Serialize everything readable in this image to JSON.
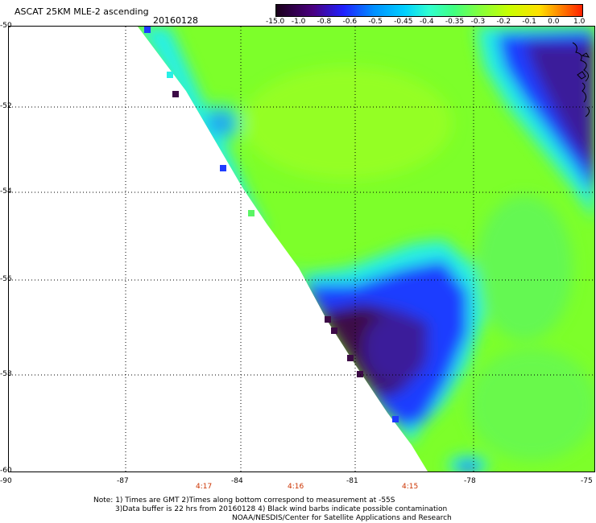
{
  "title": "ASCAT 25KM MLE-2 ascending",
  "date": "20160128",
  "colorbar": {
    "labels": [
      "-15.0",
      "-1.0",
      "-0.8",
      "-0.6",
      "-0.5",
      "-0.45",
      "-0.4",
      "-0.35",
      "-0.3",
      "-0.2",
      "-0.1",
      "0.0",
      "1.0"
    ],
    "colors": [
      "#1a001a",
      "#3a0060",
      "#5a00b0",
      "#2020ff",
      "#0080ff",
      "#00c8ff",
      "#40ffe0",
      "#40ff80",
      "#80ff40",
      "#c0ff00",
      "#ffff00",
      "#ff9000",
      "#ff2000"
    ]
  },
  "axes": {
    "lat_labels": [
      "-50",
      "-52",
      "-54",
      "-56",
      "-58",
      "-60"
    ],
    "lon_labels": [
      "-90",
      "-87",
      "-84",
      "-81",
      "-78",
      "-75"
    ]
  },
  "times": [
    "4:17",
    "4:16",
    "4:15"
  ],
  "notes": {
    "line1": "Note: 1) Times are GMT 2)Times along bottom correspond to measurement at -55S",
    "line2": "3)Data buffer is 22 hrs from 20160128 4) Black wind barbs indicate possible contamination",
    "line3": "NOAA/NESDIS/Center for Satellite Applications and Research"
  },
  "palette": {
    "green": "#7dff2a",
    "light_green": "#5af564",
    "cyan": "#28f0e6",
    "blue": "#1e3cff",
    "dark_blue": "#3a1e9a",
    "purple": "#3c0a46"
  }
}
